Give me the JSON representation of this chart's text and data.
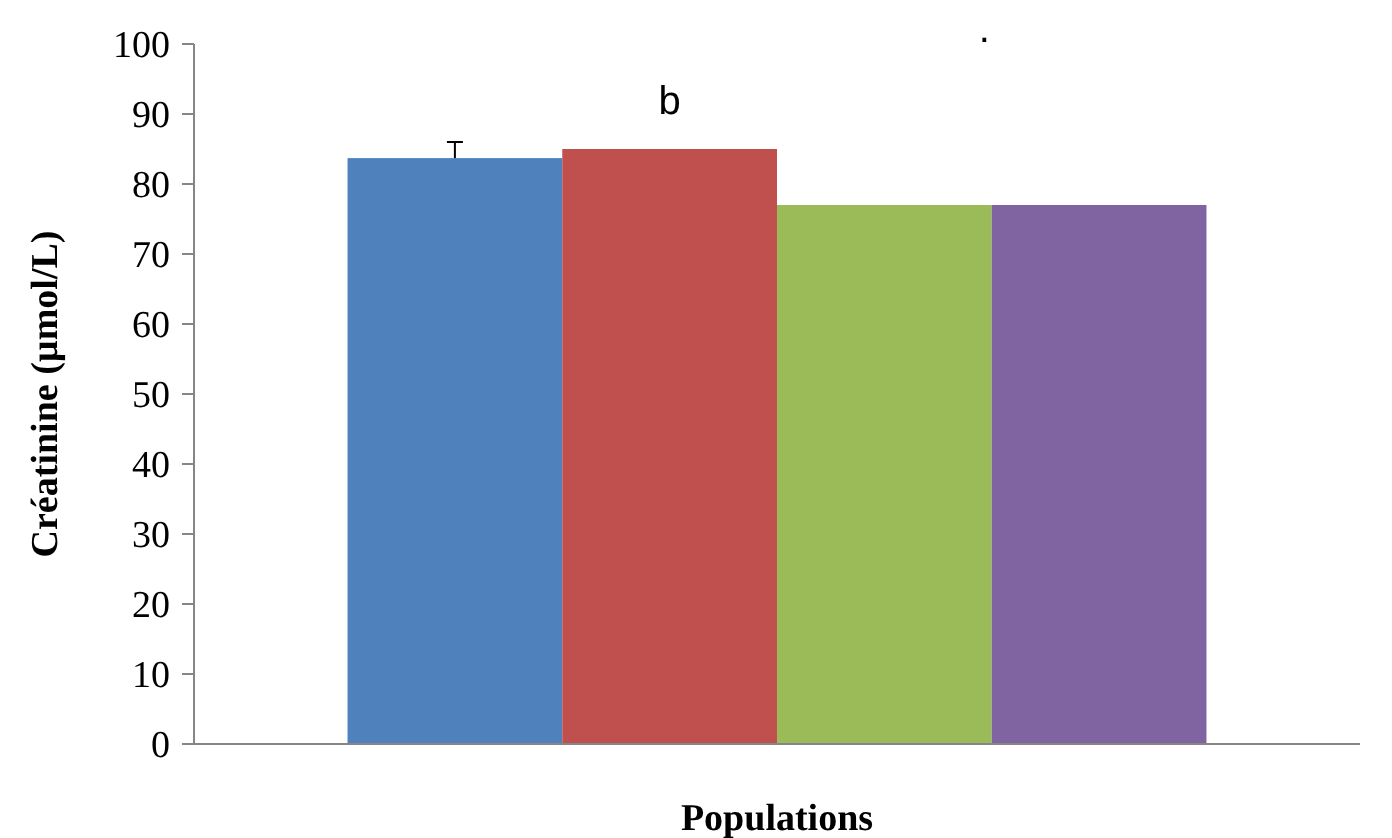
{
  "chart_data": {
    "type": "bar",
    "xlabel": "Populations",
    "ylabel": "Créatinine (µmol/L)",
    "categories": [
      null
    ],
    "series": [
      {
        "color": "#4f81bd",
        "values": [
          83.7
        ],
        "errors": [
          [
            83.7,
            86
          ]
        ]
      },
      {
        "color": "#c0504d",
        "values": [
          85
        ]
      },
      {
        "color": "#9bbb59",
        "values": [
          77
        ]
      },
      {
        "color": "#8064a2",
        "values": [
          77
        ]
      }
    ],
    "ylim": [
      0,
      100
    ],
    "yticks": [
      0,
      10,
      20,
      30,
      40,
      50,
      60,
      70,
      80,
      90,
      100
    ],
    "annotations": [
      "b",
      "."
    ]
  }
}
